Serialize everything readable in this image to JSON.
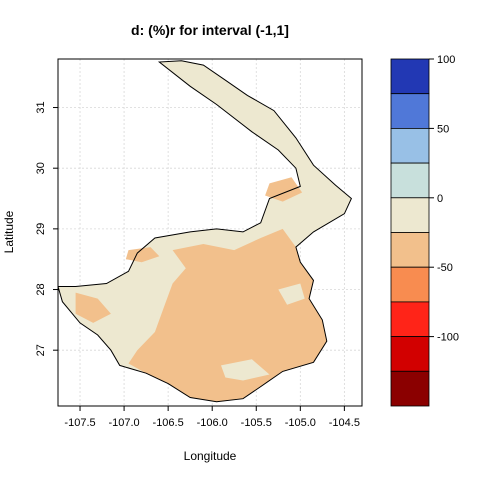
{
  "title": "d:   (%)r for interval (-1,1]",
  "x_axis": {
    "label": "Longitude",
    "range": [
      -107.75,
      -104.3
    ],
    "ticks": [
      {
        "value": -107.5,
        "label": "-107.5"
      },
      {
        "value": -107.0,
        "label": "-107.0"
      },
      {
        "value": -106.5,
        "label": "-106.5"
      },
      {
        "value": -106.0,
        "label": "-106.0"
      },
      {
        "value": -105.5,
        "label": "-105.5"
      },
      {
        "value": -105.0,
        "label": "-105.0"
      },
      {
        "value": -104.5,
        "label": "-104.5"
      }
    ]
  },
  "y_axis": {
    "label": "Latitude",
    "range": [
      26.08,
      31.8
    ],
    "ticks": [
      {
        "value": 27,
        "label": "27"
      },
      {
        "value": 28,
        "label": "28"
      },
      {
        "value": 29,
        "label": "29"
      },
      {
        "value": 30,
        "label": "30"
      },
      {
        "value": 31,
        "label": "31"
      }
    ]
  },
  "grid": true,
  "colorbar": {
    "range": [
      -100,
      100
    ],
    "bins": [
      {
        "from": 75,
        "to": 100,
        "color": "#2238b4"
      },
      {
        "from": 50,
        "to": 75,
        "color": "#5078d8"
      },
      {
        "from": 25,
        "to": 50,
        "color": "#98c0e6"
      },
      {
        "from": 0,
        "to": 25,
        "color": "#c8e0dc"
      },
      {
        "from": -25,
        "to": 0,
        "color": "#ede8d0"
      },
      {
        "from": -50,
        "to": -25,
        "color": "#f2c08c"
      },
      {
        "from": -75,
        "to": -50,
        "color": "#f88c50"
      },
      {
        "from": -100,
        "to": -75,
        "color": "#ff2418"
      },
      {
        "from": -125,
        "to": -100,
        "color": "#d20000"
      },
      {
        "from": -150,
        "to": -125,
        "color": "#8b0000"
      }
    ],
    "ticks": [
      {
        "value": 100,
        "label": "100"
      },
      {
        "value": 50,
        "label": "50"
      },
      {
        "value": 0,
        "label": "0"
      },
      {
        "value": -50,
        "label": "-50"
      },
      {
        "value": -100,
        "label": "-100"
      }
    ]
  },
  "map_data": {
    "outline_color": "#000000",
    "fill_colors": {
      "near_zero": "#ede8d0",
      "negative_25_50": "#f2c08c"
    },
    "basin_outline": [
      [
        -106.35,
        31.77
      ],
      [
        -106.1,
        31.7
      ],
      [
        -105.85,
        31.45
      ],
      [
        -105.6,
        31.2
      ],
      [
        -105.3,
        30.95
      ],
      [
        -105.05,
        30.5
      ],
      [
        -104.85,
        30.05
      ],
      [
        -104.6,
        29.72
      ],
      [
        -104.42,
        29.5
      ],
      [
        -104.5,
        29.25
      ],
      [
        -104.85,
        28.95
      ],
      [
        -105.05,
        28.7
      ],
      [
        -105.0,
        28.45
      ],
      [
        -104.85,
        28.15
      ],
      [
        -104.9,
        27.85
      ],
      [
        -104.75,
        27.5
      ],
      [
        -104.7,
        27.15
      ],
      [
        -104.85,
        26.8
      ],
      [
        -105.2,
        26.65
      ],
      [
        -105.45,
        26.4
      ],
      [
        -105.65,
        26.2
      ],
      [
        -105.95,
        26.15
      ],
      [
        -106.25,
        26.22
      ],
      [
        -106.5,
        26.45
      ],
      [
        -106.75,
        26.62
      ],
      [
        -107.05,
        26.75
      ],
      [
        -107.15,
        27.0
      ],
      [
        -107.3,
        27.25
      ],
      [
        -107.5,
        27.45
      ],
      [
        -107.7,
        27.8
      ],
      [
        -107.75,
        28.05
      ],
      [
        -107.55,
        28.05
      ],
      [
        -107.2,
        28.1
      ],
      [
        -106.95,
        28.3
      ],
      [
        -106.85,
        28.6
      ],
      [
        -106.65,
        28.85
      ],
      [
        -106.25,
        28.95
      ],
      [
        -105.95,
        29.0
      ],
      [
        -105.65,
        28.95
      ],
      [
        -105.45,
        29.1
      ],
      [
        -105.35,
        29.5
      ],
      [
        -105.0,
        29.7
      ],
      [
        -105.05,
        30.0
      ],
      [
        -105.25,
        30.3
      ],
      [
        -105.55,
        30.6
      ],
      [
        -105.95,
        31.05
      ],
      [
        -106.25,
        31.35
      ],
      [
        -106.6,
        31.75
      ]
    ],
    "negative_regions": [
      [
        [
          -106.45,
          28.65
        ],
        [
          -106.1,
          28.75
        ],
        [
          -105.75,
          28.65
        ],
        [
          -105.45,
          28.85
        ],
        [
          -105.2,
          29.0
        ],
        [
          -105.05,
          28.7
        ],
        [
          -105.0,
          28.45
        ],
        [
          -104.85,
          28.15
        ],
        [
          -104.9,
          27.85
        ],
        [
          -104.75,
          27.5
        ],
        [
          -104.7,
          27.15
        ],
        [
          -104.85,
          26.8
        ],
        [
          -105.2,
          26.65
        ],
        [
          -105.45,
          26.4
        ],
        [
          -105.65,
          26.2
        ],
        [
          -105.95,
          26.15
        ],
        [
          -106.25,
          26.22
        ],
        [
          -106.5,
          26.45
        ],
        [
          -106.75,
          26.62
        ],
        [
          -106.95,
          26.78
        ],
        [
          -106.85,
          27.0
        ],
        [
          -106.65,
          27.3
        ],
        [
          -106.55,
          27.7
        ],
        [
          -106.45,
          28.1
        ],
        [
          -106.3,
          28.35
        ]
      ],
      [
        [
          -107.55,
          27.95
        ],
        [
          -107.3,
          27.85
        ],
        [
          -107.15,
          27.6
        ],
        [
          -107.35,
          27.45
        ],
        [
          -107.55,
          27.6
        ]
      ],
      [
        [
          -105.35,
          29.75
        ],
        [
          -105.1,
          29.85
        ],
        [
          -104.98,
          29.6
        ],
        [
          -105.2,
          29.45
        ],
        [
          -105.4,
          29.55
        ]
      ],
      [
        [
          -106.95,
          28.65
        ],
        [
          -106.7,
          28.7
        ],
        [
          -106.6,
          28.55
        ],
        [
          -106.8,
          28.45
        ],
        [
          -106.98,
          28.5
        ]
      ]
    ],
    "near_zero_regions": [
      [
        [
          -105.9,
          26.75
        ],
        [
          -105.55,
          26.85
        ],
        [
          -105.35,
          26.6
        ],
        [
          -105.65,
          26.5
        ],
        [
          -105.85,
          26.55
        ]
      ],
      [
        [
          -105.25,
          28.0
        ],
        [
          -105.0,
          28.1
        ],
        [
          -104.95,
          27.85
        ],
        [
          -105.15,
          27.75
        ]
      ]
    ]
  }
}
